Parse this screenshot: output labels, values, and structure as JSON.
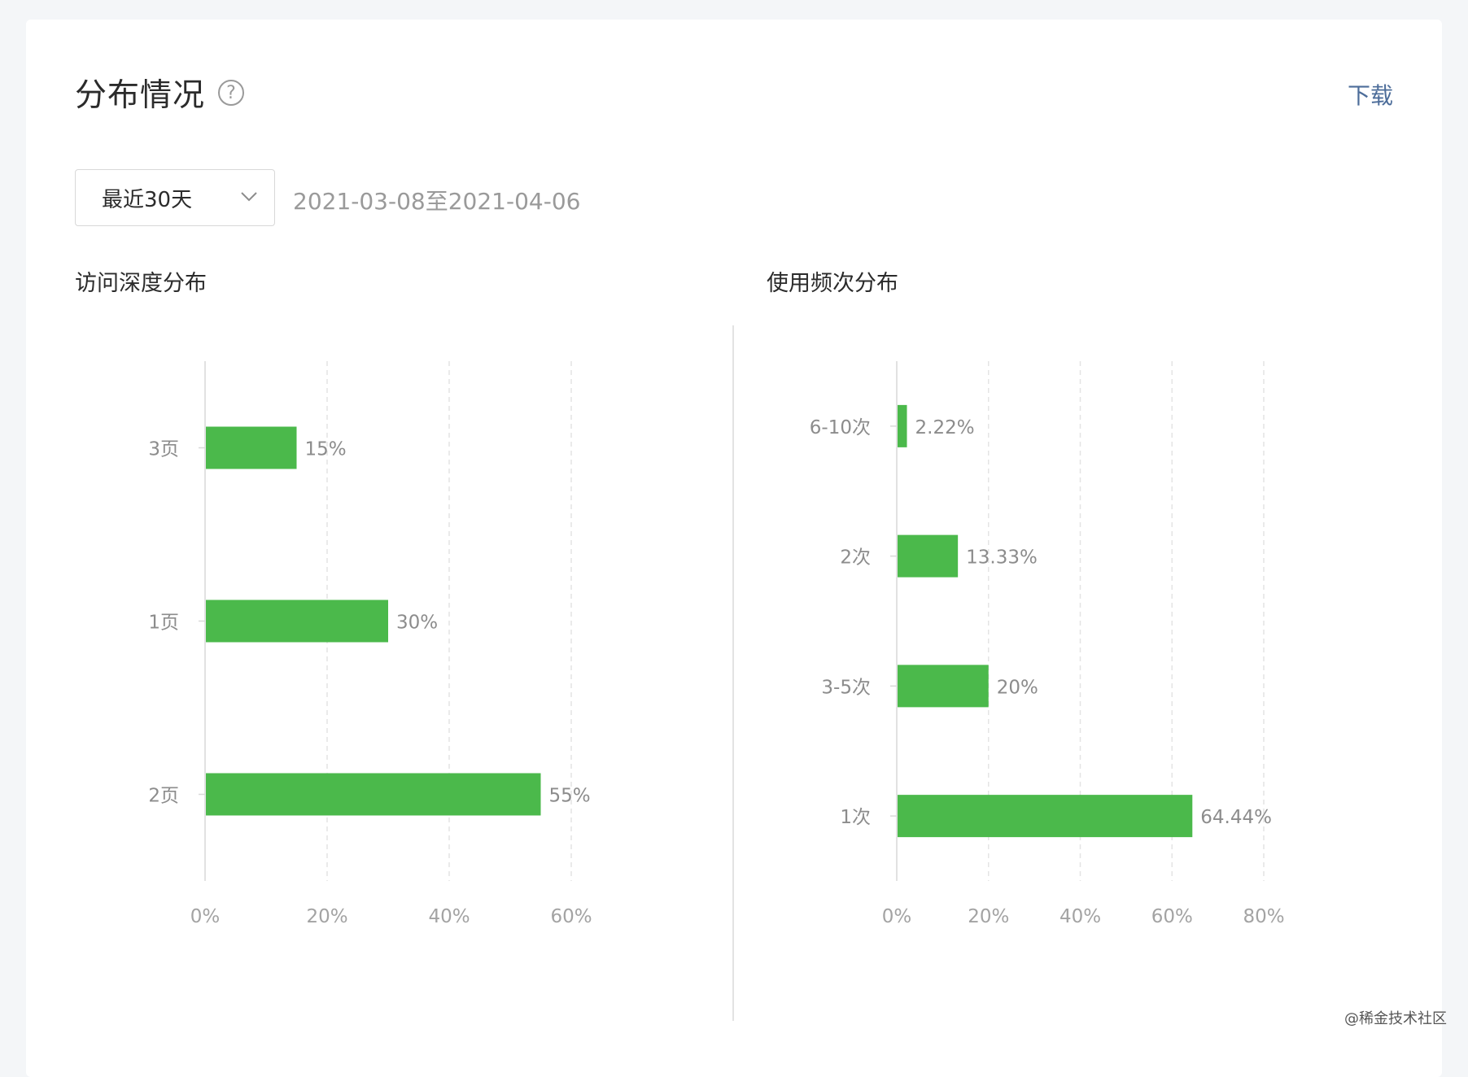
{
  "header": {
    "title": "分布情况",
    "help_symbol": "?",
    "download_label": "下载"
  },
  "filter": {
    "selected": "最近30天",
    "date_range": "2021-03-08至2021-04-06"
  },
  "colors": {
    "bar": "#4bb94b",
    "axis": "#d9d9d9",
    "grid": "#e4e4e4",
    "label": "#8c8c8c"
  },
  "watermark": "@稀金技术社区",
  "chart_data": [
    {
      "type": "bar",
      "orientation": "horizontal",
      "title": "访问深度分布",
      "categories": [
        "3页",
        "1页",
        "2页"
      ],
      "values": [
        15,
        30,
        55
      ],
      "value_labels": [
        "15%",
        "30%",
        "55%"
      ],
      "xlim": [
        0,
        60
      ],
      "xticks": [
        "0%",
        "20%",
        "40%",
        "60%"
      ],
      "grid": true
    },
    {
      "type": "bar",
      "orientation": "horizontal",
      "title": "使用频次分布",
      "categories": [
        "6-10次",
        "2次",
        "3-5次",
        "1次"
      ],
      "values": [
        2.22,
        13.33,
        20,
        64.44
      ],
      "value_labels": [
        "2.22%",
        "13.33%",
        "20%",
        "64.44%"
      ],
      "xlim": [
        0,
        80
      ],
      "xticks": [
        "0%",
        "20%",
        "40%",
        "60%",
        "80%"
      ],
      "grid": true
    }
  ]
}
